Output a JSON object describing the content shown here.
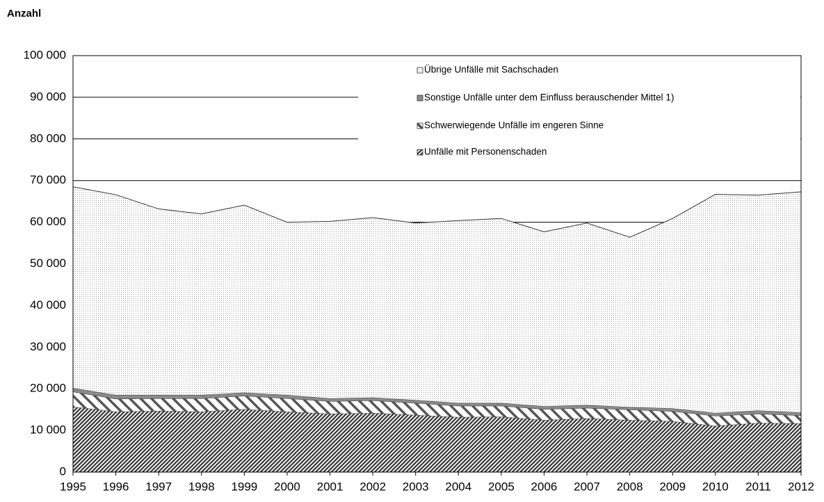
{
  "chart_data": {
    "type": "stacked_area",
    "title": "Anzahl",
    "categories": [
      "1995",
      "1996",
      "1997",
      "1998",
      "1999",
      "2000",
      "2001",
      "2002",
      "2003",
      "2004",
      "2005",
      "2006",
      "2007",
      "2008",
      "2009",
      "2010",
      "2011",
      "2012"
    ],
    "series": [
      {
        "name": "Unfälle mit Personenschaden",
        "color": "#333333",
        "values": [
          15700,
          14500,
          14700,
          14500,
          15100,
          14500,
          14000,
          14200,
          13700,
          13200,
          13300,
          12500,
          12900,
          12500,
          12200,
          11100,
          11800,
          11700
        ]
      },
      {
        "name": "Schwerwiegende Unfälle im engeren Sinne",
        "color": "#555555",
        "values": [
          3600,
          3100,
          3000,
          3200,
          3200,
          3200,
          3000,
          3000,
          2900,
          2700,
          2600,
          2600,
          2500,
          2500,
          2400,
          2400,
          2200,
          1900
        ]
      },
      {
        "name": "Sonstige Unfälle unter dem Einfluss berauschender Mittel 1)",
        "color": "#8a8a8a",
        "values": [
          900,
          900,
          800,
          800,
          800,
          800,
          700,
          700,
          700,
          700,
          700,
          700,
          700,
          600,
          700,
          700,
          800,
          700
        ]
      },
      {
        "name": "Übrige Unfälle mit Sachschaden",
        "color": "#9a9a9a",
        "values": [
          48300,
          48100,
          44700,
          43500,
          45000,
          41500,
          42500,
          43200,
          42500,
          43800,
          44300,
          41900,
          43700,
          40800,
          45600,
          52500,
          51700,
          53000
        ]
      }
    ],
    "ylim": [
      0,
      100000
    ],
    "yticks": [
      0,
      {
        "value": 10000,
        "label": "10 000"
      },
      {
        "value": 20000,
        "label": "20 000"
      },
      {
        "value": 30000,
        "label": "30 000"
      },
      {
        "value": 40000,
        "label": "40 000"
      },
      {
        "value": 50000,
        "label": "50 000"
      },
      {
        "value": 60000,
        "label": "60 000"
      },
      {
        "value": 70000,
        "label": "70 000"
      },
      {
        "value": 80000,
        "label": "80 000"
      },
      {
        "value": 90000,
        "label": "90 000"
      },
      {
        "value": 100000,
        "label": "100 000"
      }
    ],
    "grid": true
  }
}
